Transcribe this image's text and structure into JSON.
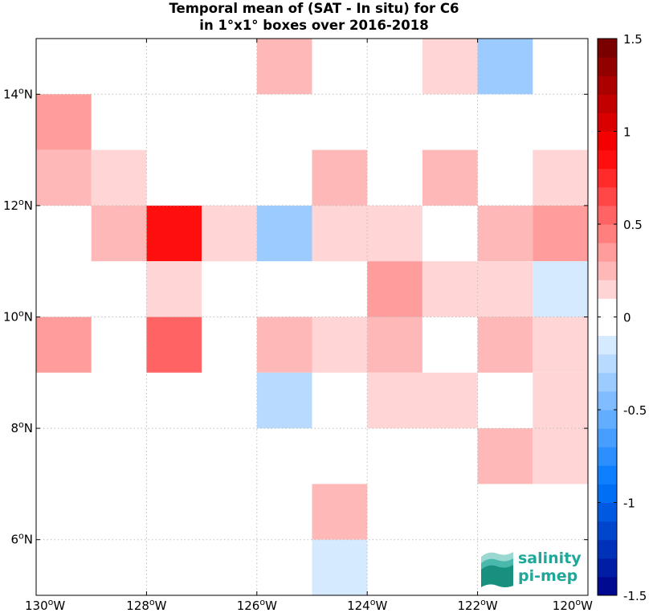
{
  "chart_data": {
    "type": "heatmap",
    "title_line1": "Temporal mean of (SAT - In situ) for C6",
    "title_line2": "in 1°x1° boxes over 2016-2018",
    "xlim": [
      -130,
      -120
    ],
    "ylim": [
      5,
      15
    ],
    "x_ticks": [
      {
        "value": -130,
        "label": "130°W"
      },
      {
        "value": -128,
        "label": "128°W"
      },
      {
        "value": -126,
        "label": "126°W"
      },
      {
        "value": -124,
        "label": "124°W"
      },
      {
        "value": -122,
        "label": "122°W"
      },
      {
        "value": -120,
        "label": "120°W"
      }
    ],
    "y_ticks": [
      {
        "value": 6,
        "label": "6°N"
      },
      {
        "value": 8,
        "label": "8°N"
      },
      {
        "value": 10,
        "label": "10°N"
      },
      {
        "value": 12,
        "label": "12°N"
      },
      {
        "value": 14,
        "label": "14°N"
      }
    ],
    "grid": true,
    "colorbar": {
      "range": [
        -1.5,
        1.5
      ],
      "step": 0.1,
      "ticks": [
        {
          "value": 1.5,
          "label": "1.5"
        },
        {
          "value": 1,
          "label": "1"
        },
        {
          "value": 0.5,
          "label": "0.5"
        },
        {
          "value": 0,
          "label": "0"
        },
        {
          "value": -0.5,
          "label": "-0.5"
        },
        {
          "value": -1,
          "label": "-1"
        },
        {
          "value": -1.5,
          "label": "-1.5"
        }
      ]
    },
    "cells": [
      {
        "lon": -126,
        "lat": 14,
        "value": 0.25
      },
      {
        "lon": -123,
        "lat": 14,
        "value": 0.15
      },
      {
        "lon": -122,
        "lat": 14,
        "value": -0.35
      },
      {
        "lon": -130,
        "lat": 13,
        "value": 0.35
      },
      {
        "lon": -130,
        "lat": 12,
        "value": 0.25
      },
      {
        "lon": -129,
        "lat": 12,
        "value": 0.15
      },
      {
        "lon": -125,
        "lat": 12,
        "value": 0.25
      },
      {
        "lon": -123,
        "lat": 12,
        "value": 0.25
      },
      {
        "lon": -121,
        "lat": 12,
        "value": 0.15
      },
      {
        "lon": -129,
        "lat": 11,
        "value": 0.25
      },
      {
        "lon": -128,
        "lat": 11,
        "value": 0.85
      },
      {
        "lon": -127,
        "lat": 11,
        "value": 0.15
      },
      {
        "lon": -126,
        "lat": 11,
        "value": -0.35
      },
      {
        "lon": -125,
        "lat": 11,
        "value": 0.15
      },
      {
        "lon": -124,
        "lat": 11,
        "value": 0.15
      },
      {
        "lon": -122,
        "lat": 11,
        "value": 0.25
      },
      {
        "lon": -121,
        "lat": 11,
        "value": 0.35
      },
      {
        "lon": -128,
        "lat": 10,
        "value": 0.15
      },
      {
        "lon": -124,
        "lat": 10,
        "value": 0.35
      },
      {
        "lon": -123,
        "lat": 10,
        "value": 0.15
      },
      {
        "lon": -122,
        "lat": 10,
        "value": 0.15
      },
      {
        "lon": -121,
        "lat": 10,
        "value": -0.15
      },
      {
        "lon": -130,
        "lat": 9,
        "value": 0.35
      },
      {
        "lon": -128,
        "lat": 9,
        "value": 0.55
      },
      {
        "lon": -126,
        "lat": 9,
        "value": 0.25
      },
      {
        "lon": -125,
        "lat": 9,
        "value": 0.15
      },
      {
        "lon": -124,
        "lat": 9,
        "value": 0.25
      },
      {
        "lon": -122,
        "lat": 9,
        "value": 0.25
      },
      {
        "lon": -121,
        "lat": 9,
        "value": 0.15
      },
      {
        "lon": -126,
        "lat": 8,
        "value": -0.25
      },
      {
        "lon": -124,
        "lat": 8,
        "value": 0.15
      },
      {
        "lon": -123,
        "lat": 8,
        "value": 0.15
      },
      {
        "lon": -121,
        "lat": 8,
        "value": 0.15
      },
      {
        "lon": -122,
        "lat": 7,
        "value": 0.25
      },
      {
        "lon": -121,
        "lat": 7,
        "value": 0.15
      },
      {
        "lon": -125,
        "lat": 6,
        "value": 0.25
      },
      {
        "lon": -125,
        "lat": 5,
        "value": -0.15
      }
    ]
  },
  "logo": {
    "line1": "salinity",
    "line2": "pi-mep",
    "color": "#1fa89a"
  }
}
